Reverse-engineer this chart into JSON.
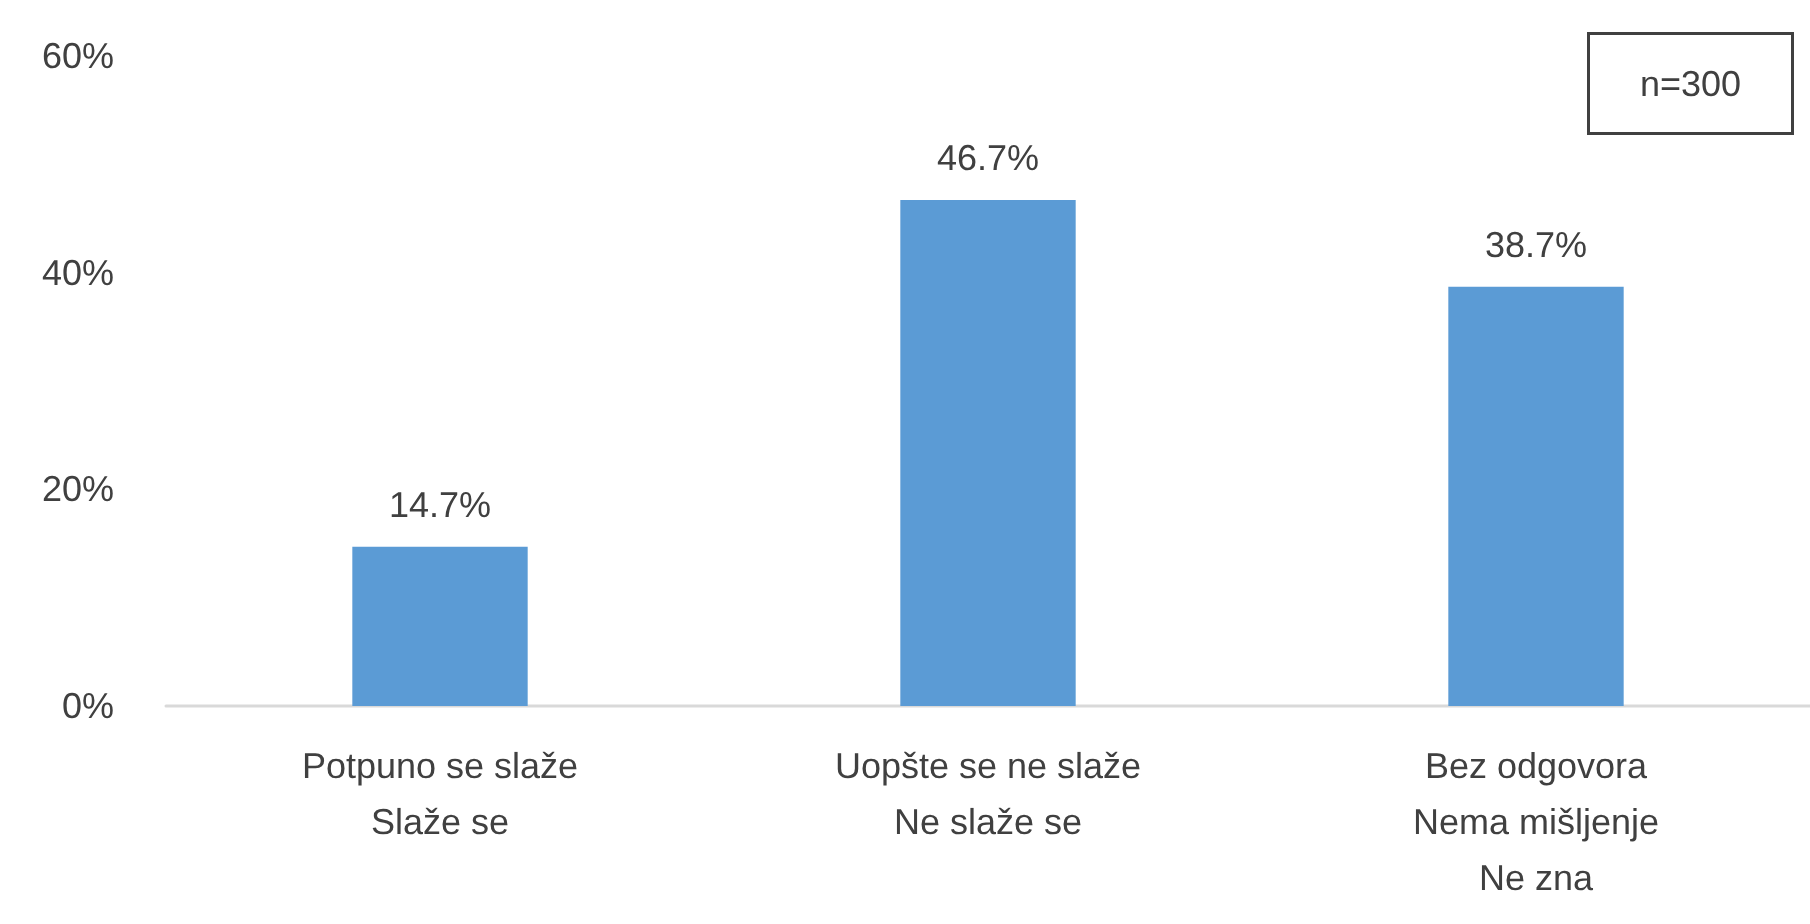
{
  "chart_data": {
    "type": "bar",
    "categories": [
      "Potpuno se slaže\nSlaže se",
      "Uopšte se ne slaže\nNe slaže se",
      "Bez odgovora\nNema mišljenje\nNe zna"
    ],
    "values": [
      14.7,
      46.7,
      38.7
    ],
    "value_labels": [
      "14.7%",
      "46.7%",
      "38.7%"
    ],
    "color": "#5b9bd5",
    "ylim": [
      0,
      60
    ],
    "yticks": [
      {
        "value": 0,
        "label": "0%"
      },
      {
        "value": 20,
        "label": "20%"
      },
      {
        "value": 40,
        "label": "40%"
      },
      {
        "value": 60,
        "label": "60%"
      }
    ],
    "grid": false,
    "annotations": [
      "n=300"
    ]
  }
}
